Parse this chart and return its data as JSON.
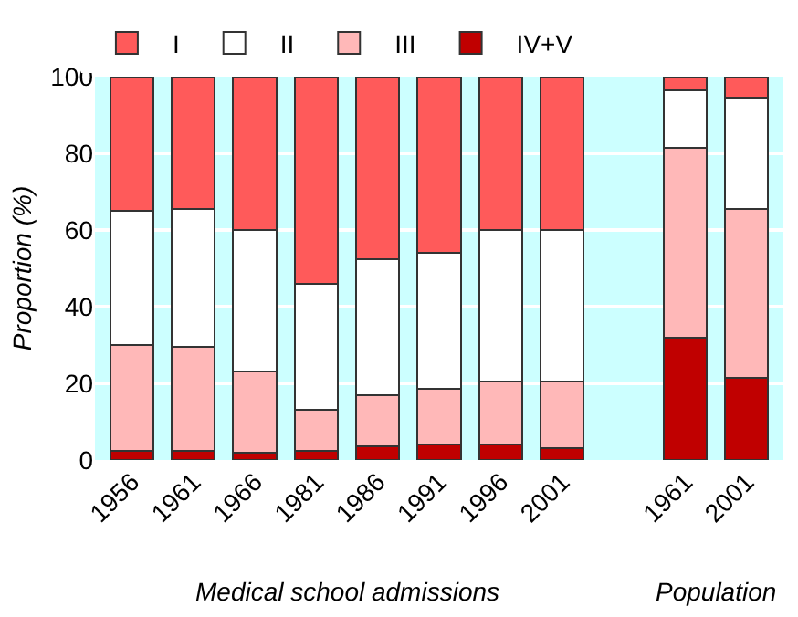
{
  "chart_data": {
    "type": "bar",
    "stacked": true,
    "ylabel": "Proportion (%)",
    "categories": [
      "1956",
      "1961",
      "1966",
      "1981",
      "1986",
      "1991",
      "1996",
      "2001",
      null,
      "1961",
      "2001"
    ],
    "series": [
      {
        "name": "IV+V",
        "color": "#c00000",
        "values": [
          2.5,
          2.5,
          2,
          2.5,
          3.5,
          4,
          4,
          3,
          null,
          32,
          21.5
        ]
      },
      {
        "name": "III",
        "color": "#ffb8b8",
        "values": [
          27.5,
          27,
          21,
          10.5,
          13.5,
          14.5,
          16.5,
          17.5,
          null,
          49.5,
          44
        ]
      },
      {
        "name": "II",
        "color": "#ffffff",
        "values": [
          35,
          36,
          37,
          33,
          35.5,
          35.5,
          39.5,
          39.5,
          null,
          15,
          29
        ]
      },
      {
        "name": "I",
        "color": "#ff5a5a",
        "values": [
          35,
          34.5,
          40,
          54,
          47.5,
          46,
          40,
          40,
          null,
          3.5,
          5.5
        ]
      }
    ],
    "ylim": [
      0,
      100
    ],
    "yticks": [
      0,
      20,
      40,
      60,
      80,
      100
    ],
    "grid": "y",
    "legend": "top",
    "annotations": [
      "Medical school admissions",
      "Population"
    ]
  }
}
